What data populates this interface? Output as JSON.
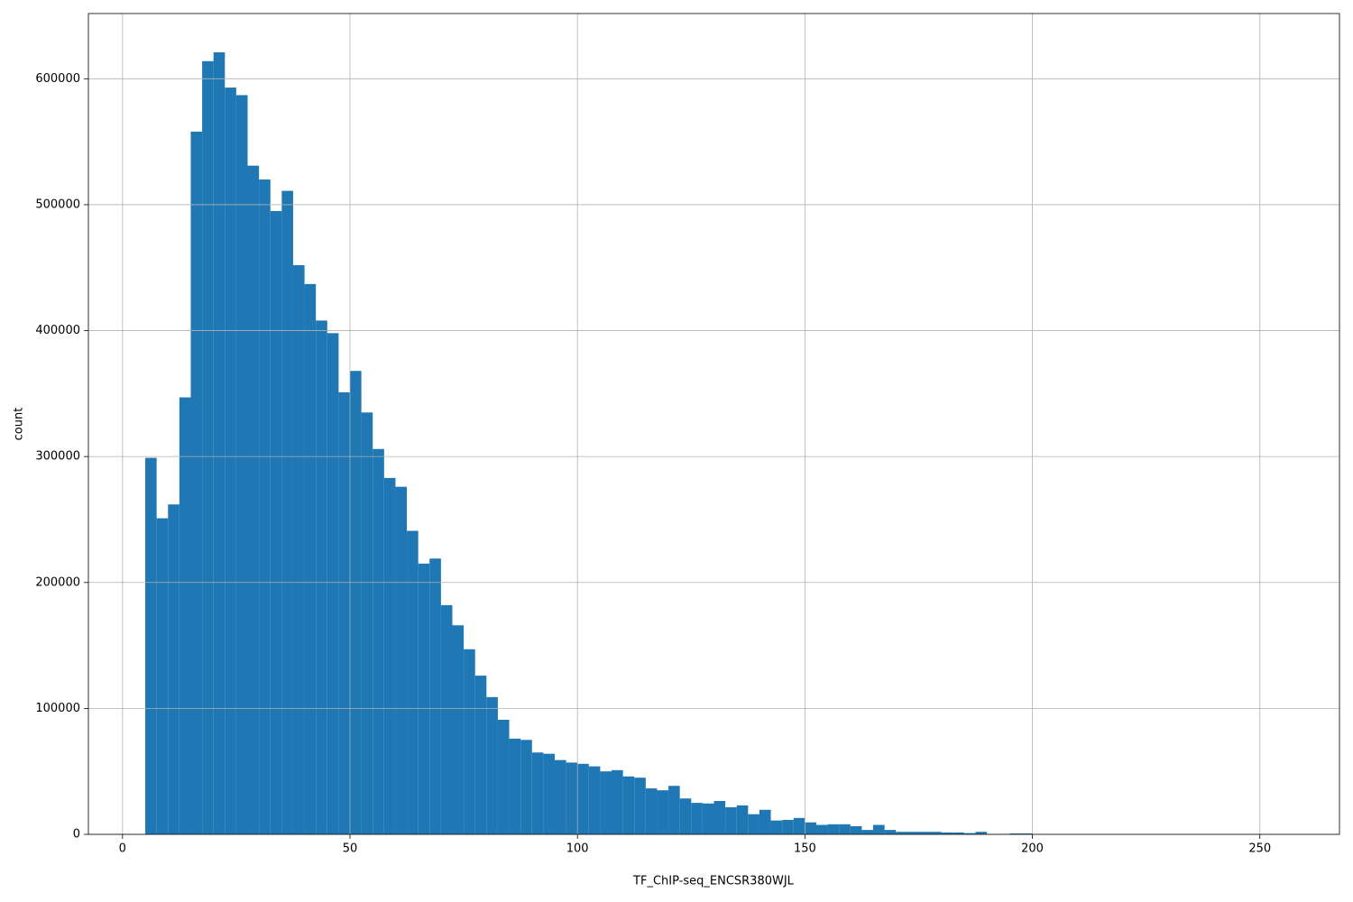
{
  "chart_data": {
    "type": "histogram",
    "xlabel": "TF_ChIP-seq_ENCSR380WJL",
    "ylabel": "count",
    "color": "#1f77b4",
    "grid": true,
    "bins": [
      5,
      7.5,
      10,
      12.5,
      15,
      17.5,
      20,
      22.5,
      25,
      27.5,
      30,
      32.5,
      35,
      37.5,
      40,
      42.5,
      45,
      47.5,
      50,
      52.5,
      55,
      57.5,
      60,
      62.5,
      65,
      67.5,
      70,
      72.5,
      75,
      77.5,
      80,
      82.5,
      85,
      87.5,
      90,
      92.5,
      95,
      97.5,
      100,
      102.5,
      105,
      107.5,
      110,
      112.5,
      115,
      117.5,
      120,
      122.5,
      125,
      127.5,
      130,
      132.5,
      135,
      137.5,
      140,
      142.5,
      145,
      147.5,
      150,
      152.5,
      155,
      157.5,
      160,
      162.5,
      165,
      167.5,
      170,
      172.5,
      175,
      177.5,
      180,
      182.5,
      185,
      187.5,
      190,
      192.5,
      195,
      197.5,
      200,
      202.5,
      205,
      207.5,
      210,
      212.5,
      215,
      217.5,
      220,
      222.5,
      225,
      227.5,
      230,
      232.5,
      235,
      237.5,
      240,
      242.5,
      245,
      247.5,
      250,
      252.5,
      255
    ],
    "counts": [
      299000,
      251000,
      262000,
      347000,
      558000,
      614000,
      621000,
      593000,
      587000,
      531000,
      520000,
      495000,
      511000,
      452000,
      437000,
      408000,
      398000,
      351000,
      368000,
      335000,
      306000,
      283000,
      276000,
      241000,
      215000,
      219000,
      182000,
      166000,
      147000,
      126000,
      109000,
      91000,
      76000,
      75000,
      65000,
      64000,
      59000,
      57000,
      56000,
      54000,
      50000,
      51000,
      46000,
      45000,
      36500,
      35000,
      38500,
      28500,
      25000,
      24500,
      26500,
      21500,
      23000,
      16000,
      19500,
      11000,
      11500,
      13000,
      9500,
      7500,
      8000,
      8000,
      6500,
      3500,
      7500,
      3500,
      2000,
      2000,
      2000,
      2000,
      1500,
      1500,
      1000,
      2000,
      300,
      300,
      700,
      700,
      0,
      0,
      0,
      0,
      0,
      0,
      0,
      0,
      0,
      0,
      0,
      0,
      0,
      0,
      0,
      0,
      0,
      0,
      0,
      0,
      0,
      0
    ],
    "xlim": [
      -7.5,
      267.5
    ],
    "ylim": [
      0,
      651800
    ],
    "xticks": [
      0,
      50,
      100,
      150,
      200,
      250
    ],
    "yticks": [
      0,
      100000,
      200000,
      300000,
      400000,
      500000,
      600000
    ]
  }
}
